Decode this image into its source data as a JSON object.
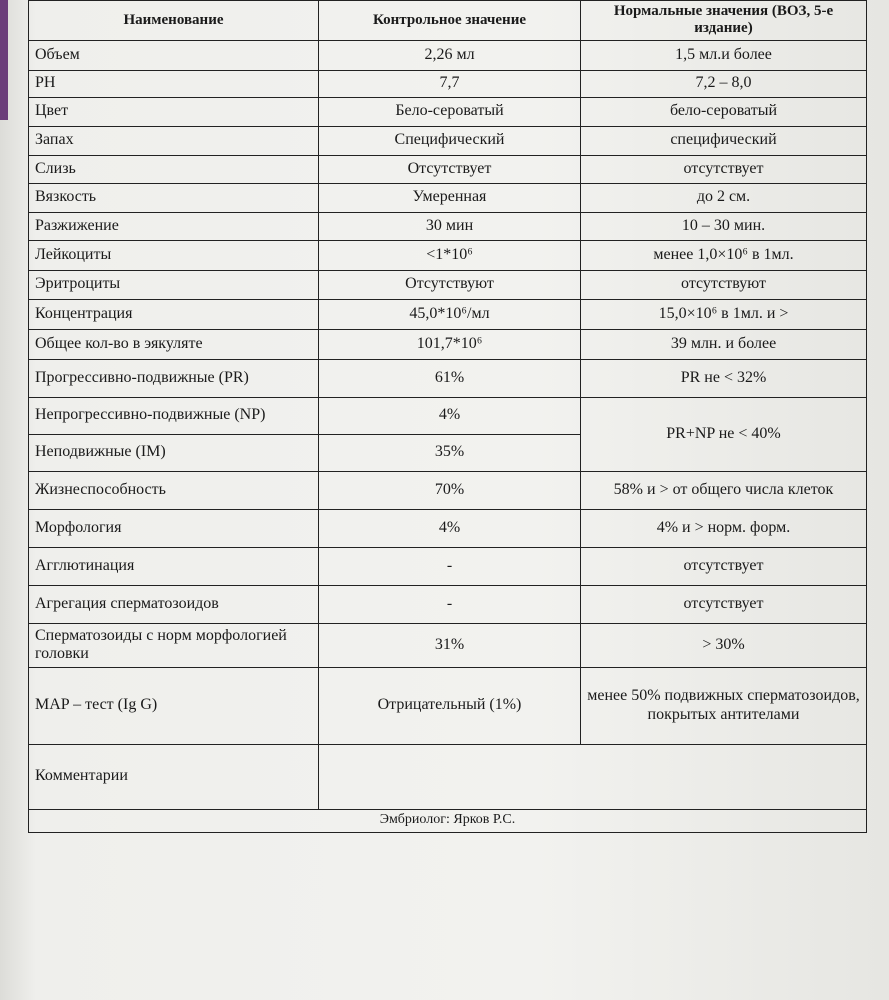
{
  "table": {
    "header": [
      "Наименование",
      "Контрольное значение",
      "Нормальные значения (ВОЗ, 5-е издание)"
    ],
    "rows": [
      [
        "Объем",
        "2,26 мл",
        "1,5 мл.и более"
      ],
      [
        "PH",
        "7,7",
        "7,2 – 8,0"
      ],
      [
        "Цвет",
        "Бело-сероватый",
        "бело-сероватый"
      ],
      [
        "Запах",
        "Специфический",
        "специфический"
      ],
      [
        "Слизь",
        "Отсутствует",
        "отсутствует"
      ],
      [
        "Вязкость",
        "Умеренная",
        "до 2 см."
      ],
      [
        "Разжижение",
        "30 мин",
        "10 – 30 мин."
      ],
      [
        "Лейкоциты",
        "<1*10⁶",
        "менее 1,0×10⁶ в 1мл."
      ],
      [
        "Эритроциты",
        "Отсутствуют",
        "отсутствуют"
      ],
      [
        "Концентрация",
        "45,0*10⁶/мл",
        "15,0×10⁶ в 1мл. и >"
      ],
      [
        "Общее кол-во в эякуляте",
        "101,7*10⁶",
        "39 млн. и более"
      ],
      [
        "Прогрессивно-подвижные (PR)",
        "61%",
        "PR не < 32%"
      ],
      [
        "Непрогрессивно-подвижные (NP)",
        "4%",
        "PR+NP не < 40%"
      ],
      [
        "Неподвижные (IM)",
        "35%"
      ],
      [
        "Жизнеспособность",
        "70%",
        "58% и > от общего числа клеток"
      ],
      [
        "Морфология",
        "4%",
        "4% и > норм. форм."
      ],
      [
        "Агглютинация",
        "-",
        "отсутствует"
      ],
      [
        "Агрегация сперматозоидов",
        "-",
        "отсутствует"
      ],
      [
        "Сперматозоиды с норм морфологией головки",
        "31%",
        "> 30%"
      ],
      [
        "MAP – тест (Ig G)",
        "Отрицательный (1%)",
        "менее 50% подвижных сперматозоидов, покрытых антителами"
      ],
      [
        "Комментарии"
      ]
    ],
    "footer": "Эмбриолог:  Ярков Р.С."
  }
}
